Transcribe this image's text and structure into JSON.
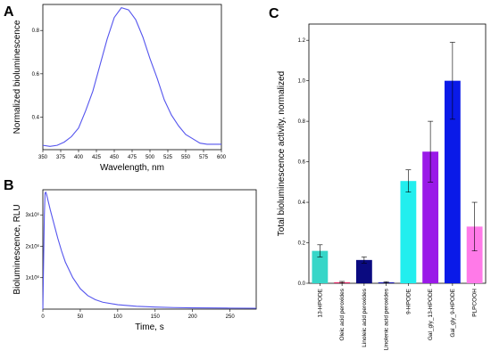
{
  "chart_data": [
    {
      "panel": "A",
      "type": "line",
      "xlabel": "Wavelength, nm",
      "ylabel": "Normalized bioluminescence",
      "xlim": [
        350,
        600
      ],
      "ylim": [
        0.25,
        0.92
      ],
      "xticks": [
        350,
        375,
        400,
        425,
        450,
        475,
        500,
        525,
        550,
        575,
        600
      ],
      "yticks": [
        0.4,
        0.6,
        0.8
      ],
      "ytick_labels": [
        "0.4",
        "0.6",
        "0.8"
      ],
      "x": [
        350,
        360,
        370,
        380,
        390,
        400,
        410,
        420,
        430,
        440,
        450,
        460,
        470,
        480,
        490,
        500,
        510,
        520,
        530,
        540,
        550,
        560,
        570,
        580,
        590,
        600
      ],
      "y": [
        0.27,
        0.265,
        0.27,
        0.285,
        0.31,
        0.35,
        0.43,
        0.52,
        0.64,
        0.76,
        0.86,
        0.905,
        0.895,
        0.85,
        0.77,
        0.67,
        0.58,
        0.48,
        0.41,
        0.36,
        0.32,
        0.3,
        0.28,
        0.275,
        0.275,
        0.275
      ],
      "color": "#5555ee"
    },
    {
      "panel": "B",
      "type": "line",
      "xlabel": "Time, s",
      "ylabel": "Bioluminescence, RLU",
      "xlim": [
        0,
        285
      ],
      "ylim": [
        0,
        3800000
      ],
      "xticks": [
        0,
        50,
        100,
        150,
        200,
        250
      ],
      "yticks": [
        1000000,
        2000000,
        3000000
      ],
      "ytick_labels": [
        "1x10⁶",
        "2x10⁶",
        "3x10⁶"
      ],
      "x": [
        0,
        2,
        3,
        4,
        5,
        7,
        10,
        15,
        20,
        25,
        30,
        40,
        50,
        60,
        70,
        80,
        100,
        125,
        150,
        175,
        200,
        225,
        250,
        285
      ],
      "y": [
        0,
        3000000,
        3700000,
        3720000,
        3650000,
        3450000,
        3150000,
        2700000,
        2250000,
        1850000,
        1500000,
        1000000,
        650000,
        430000,
        300000,
        220000,
        140000,
        90000,
        65000,
        50000,
        42000,
        36000,
        32000,
        28000
      ],
      "color": "#5555ee"
    },
    {
      "panel": "C",
      "type": "bar",
      "ylabel": "Total bioluminescence activity, normalized",
      "ylim": [
        0,
        1.28
      ],
      "yticks": [
        0.0,
        0.2,
        0.4,
        0.6,
        0.8,
        1.0,
        1.2
      ],
      "ytick_labels": [
        "0.0",
        "0.2",
        "0.4",
        "0.6",
        "0.8",
        "1.0",
        "1.2"
      ],
      "categories": [
        "13-HPODE",
        "Oleic acid peroxides",
        "Linoleic acid peroxides",
        "Linolenic acid peroxides",
        "9-HPODE",
        "Gal_gly_13-HPODE",
        "Gal_gly_9-HPODE",
        "PLPCOOH"
      ],
      "values": [
        0.16,
        0.005,
        0.115,
        0.005,
        0.505,
        0.65,
        1.0,
        0.28
      ],
      "errors": [
        0.03,
        0.004,
        0.015,
        0.003,
        0.055,
        0.15,
        0.19,
        0.12
      ],
      "colors": [
        "#36d6c8",
        "#e02060",
        "#0a0a80",
        "#1a1ab0",
        "#22eeee",
        "#9a1ae8",
        "#0a1ae8",
        "#ff7ae8"
      ]
    }
  ],
  "panels": {
    "a": "A",
    "b": "B",
    "c": "C"
  }
}
